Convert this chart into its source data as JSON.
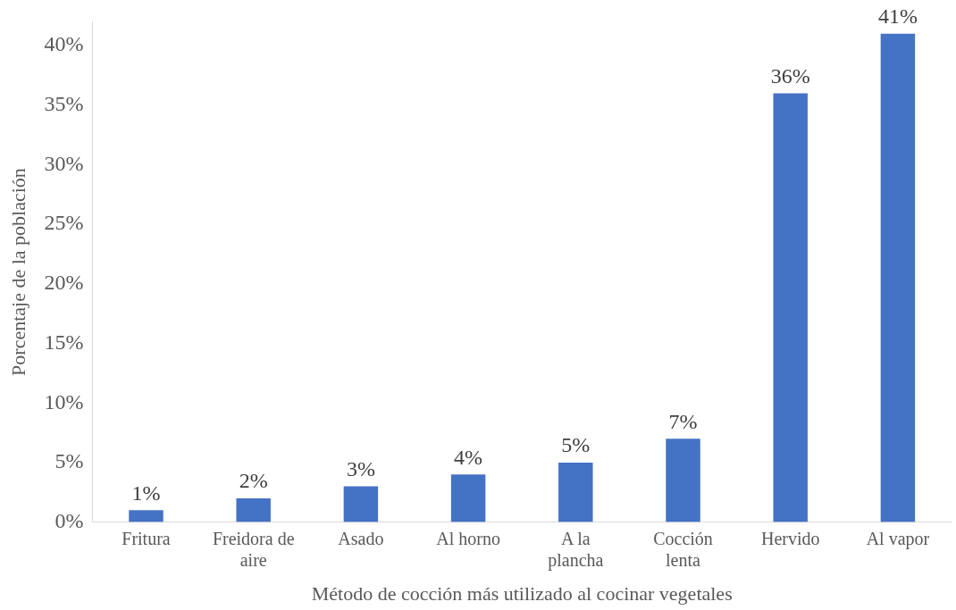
{
  "chart_data": {
    "type": "bar",
    "xlabel": "Método de cocción más utilizado al cocinar vegetales",
    "ylabel": "Porcentaje de la población",
    "categories": [
      "Fritura",
      "Freidora de aire",
      "Asado",
      "Al horno",
      "A la plancha",
      "Cocción lenta",
      "Hervido",
      "Al vapor"
    ],
    "values": [
      1,
      2,
      3,
      4,
      5,
      7,
      36,
      41
    ],
    "value_labels": [
      "1%",
      "2%",
      "3%",
      "4%",
      "5%",
      "7%",
      "36%",
      "41%"
    ],
    "color": "#4472c4",
    "ylim": [
      0,
      42
    ],
    "yticks": [
      {
        "value": 0,
        "label": "0%"
      },
      {
        "value": 5,
        "label": "5%"
      },
      {
        "value": 10,
        "label": "10%"
      },
      {
        "value": 15,
        "label": "15%"
      },
      {
        "value": 20,
        "label": "20%"
      },
      {
        "value": 25,
        "label": "25%"
      },
      {
        "value": 30,
        "label": "30%"
      },
      {
        "value": 35,
        "label": "35%"
      },
      {
        "value": 40,
        "label": "40%"
      }
    ],
    "grid": false,
    "legend": false
  }
}
